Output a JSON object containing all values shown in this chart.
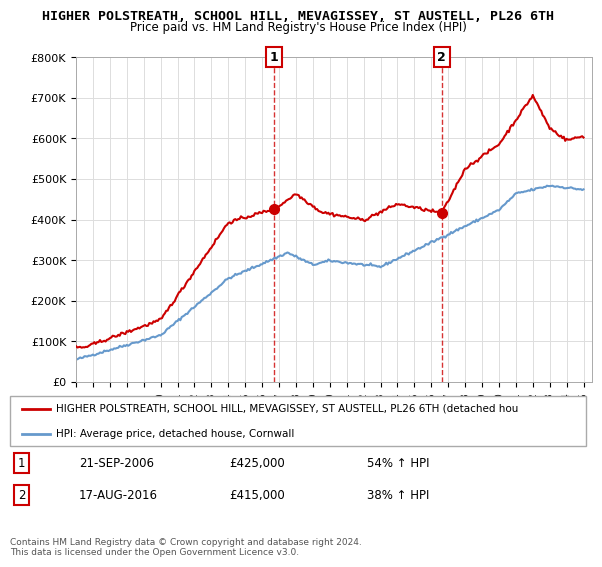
{
  "title": "HIGHER POLSTREATH, SCHOOL HILL, MEVAGISSEY, ST AUSTELL, PL26 6TH",
  "subtitle": "Price paid vs. HM Land Registry's House Price Index (HPI)",
  "legend_line1": "HIGHER POLSTREATH, SCHOOL HILL, MEVAGISSEY, ST AUSTELL, PL26 6TH (detached hou",
  "legend_line2": "HPI: Average price, detached house, Cornwall",
  "copyright": "Contains HM Land Registry data © Crown copyright and database right 2024.\nThis data is licensed under the Open Government Licence v3.0.",
  "ylim": [
    0,
    800000
  ],
  "yticks": [
    0,
    100000,
    200000,
    300000,
    400000,
    500000,
    600000,
    700000,
    800000
  ],
  "ytick_labels": [
    "£0",
    "£100K",
    "£200K",
    "£300K",
    "£400K",
    "£500K",
    "£600K",
    "£700K",
    "£800K"
  ],
  "xlim_start": 1995.0,
  "xlim_end": 2025.5,
  "sale1_x": 2006.72,
  "sale1_y": 425000,
  "sale1_label": "1",
  "sale1_date": "21-SEP-2006",
  "sale1_price": "£425,000",
  "sale1_hpi": "54% ↑ HPI",
  "sale2_x": 2016.62,
  "sale2_y": 415000,
  "sale2_label": "2",
  "sale2_date": "17-AUG-2016",
  "sale2_price": "£415,000",
  "sale2_hpi": "38% ↑ HPI",
  "red_color": "#cc0000",
  "blue_color": "#6699cc",
  "dashed_color": "#cc0000",
  "background_color": "#ffffff",
  "grid_color": "#dddddd",
  "title_fontsize": 10,
  "subtitle_fontsize": 9
}
